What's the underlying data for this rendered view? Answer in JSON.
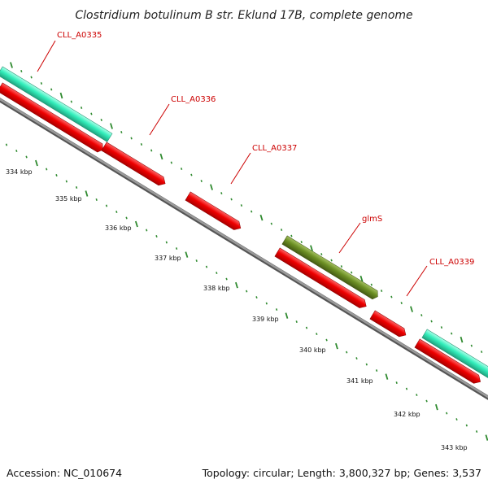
{
  "title": "Clostridium botulinum B str. Eklund 17B, complete genome",
  "footer": {
    "accession": "Accession: NC_010674",
    "summary": "Topology: circular; Length: 3,800,327 bp; Genes: 3,537"
  },
  "colors": {
    "cds_forward": "#ee0000",
    "rna_forward": "#33eebb",
    "highlight_gene": "#6b8e23",
    "callout": "#cc0000",
    "ticks": "#2f8a2f",
    "backbone": "#888888"
  },
  "axis": {
    "unit": "kbp",
    "labels": [
      "334 kbp",
      "335 kbp",
      "336 kbp",
      "337 kbp",
      "338 kbp",
      "339 kbp",
      "340 kbp",
      "341 kbp",
      "342 kbp",
      "343 kbp"
    ]
  },
  "genes": [
    {
      "label": "CLL_A0335",
      "type": "CDS"
    },
    {
      "label": "CLL_A0336",
      "type": "CDS"
    },
    {
      "label": "CLL_A0337",
      "type": "CDS"
    },
    {
      "label": "glmS",
      "type": "CDS"
    },
    {
      "label": "CLL_A0339",
      "type": "CDS"
    }
  ]
}
